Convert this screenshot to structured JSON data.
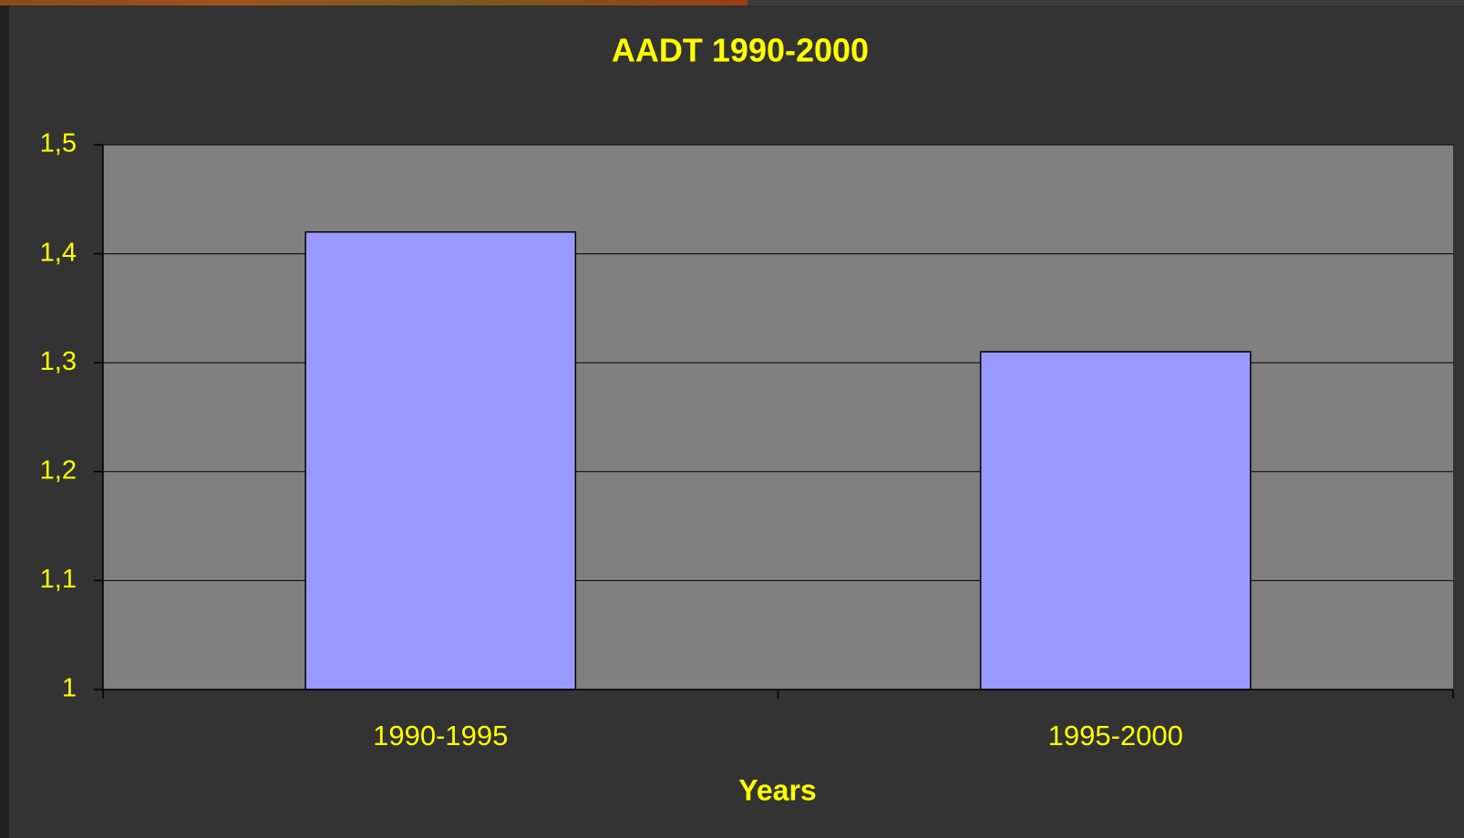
{
  "chart_data": {
    "type": "bar",
    "title": "AADT 1990-2000",
    "x_label": "Years",
    "categories": [
      "1990-1995",
      "1995-2000"
    ],
    "values": [
      1.42,
      1.31
    ],
    "color": "#9999ff",
    "ylim": [
      1,
      1.5
    ],
    "yticks": [
      1,
      {
        "value": 1.1,
        "label": "1,1"
      },
      {
        "value": 1.2,
        "label": "1,2"
      },
      {
        "value": 1.3,
        "label": "1,3"
      },
      {
        "value": 1.4,
        "label": "1,4"
      },
      {
        "value": 1.5,
        "label": "1,5"
      }
    ],
    "grid": true
  }
}
